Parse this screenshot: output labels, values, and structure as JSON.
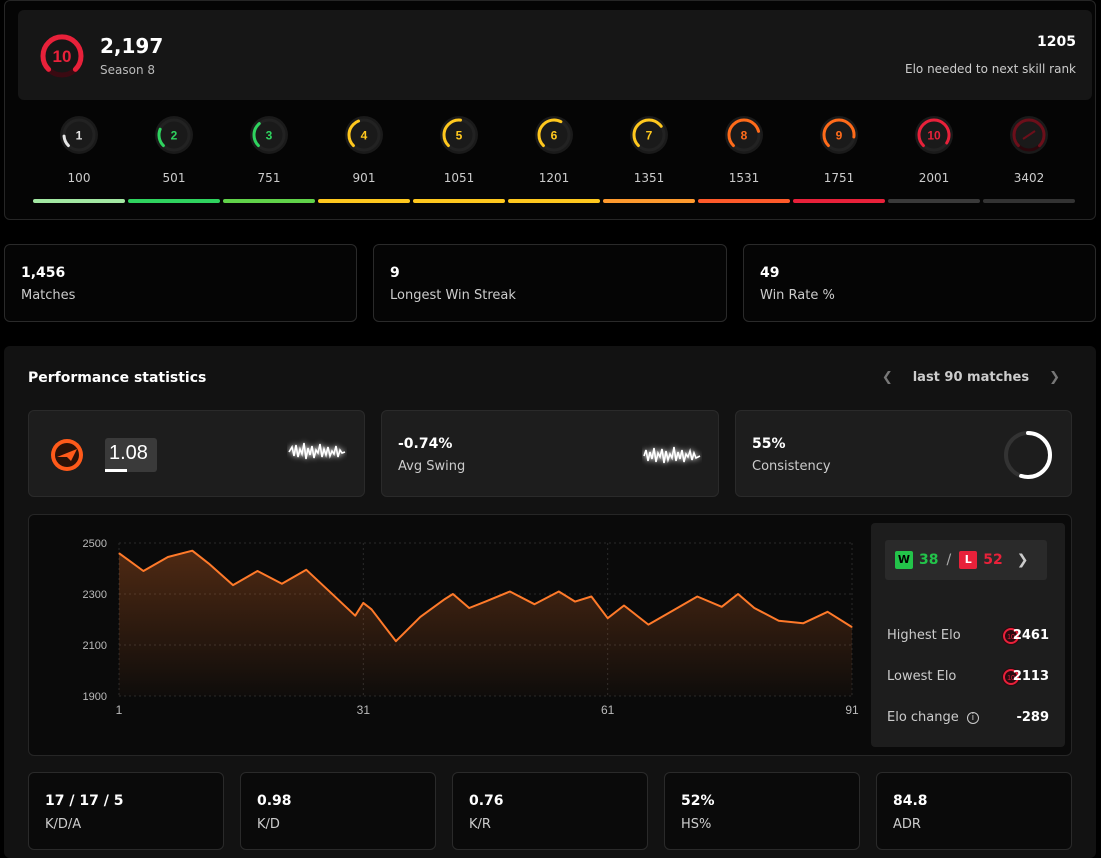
{
  "profile": {
    "level": "10",
    "elo": "2,197",
    "season": "Season 8",
    "next_value": "1205",
    "next_label": "Elo needed to next skill rank"
  },
  "levels": [
    {
      "level": "1",
      "threshold": "100",
      "color": "#e5e5e5",
      "bar": "#a3e8a3",
      "fill": 0.15
    },
    {
      "level": "2",
      "threshold": "501",
      "color": "#2fd35f",
      "bar": "#2fd35f",
      "fill": 0.25
    },
    {
      "level": "3",
      "threshold": "751",
      "color": "#2fd35f",
      "bar": "#61d34a",
      "fill": 0.35
    },
    {
      "level": "4",
      "threshold": "901",
      "color": "#ffc81e",
      "bar": "#ffc81e",
      "fill": 0.42
    },
    {
      "level": "5",
      "threshold": "1051",
      "color": "#ffc81e",
      "bar": "#ffc81e",
      "fill": 0.52
    },
    {
      "level": "6",
      "threshold": "1201",
      "color": "#ffc81e",
      "bar": "#ffc81e",
      "fill": 0.6
    },
    {
      "level": "7",
      "threshold": "1351",
      "color": "#ffc81e",
      "bar": "#ff9a2e",
      "fill": 0.7
    },
    {
      "level": "8",
      "threshold": "1531",
      "color": "#ff6b1a",
      "bar": "#ff5a2a",
      "fill": 0.78
    },
    {
      "level": "9",
      "threshold": "1751",
      "color": "#ff6b1a",
      "bar": "#e8213a",
      "fill": 0.86
    },
    {
      "level": "10",
      "threshold": "2001",
      "color": "#e8213a",
      "bar": "#3a3a3a",
      "fill": 0.95
    },
    {
      "level": "",
      "threshold": "3402",
      "color": "#6b0f1a",
      "bar": "#333333",
      "fill": 1
    }
  ],
  "summary": [
    {
      "value": "1,456",
      "label": "Matches"
    },
    {
      "value": "9",
      "label": "Longest Win Streak"
    },
    {
      "value": "49",
      "label": "Win Rate %"
    }
  ],
  "performance": {
    "title": "Performance statistics",
    "range_label": "last 90 matches",
    "rating": "1.08",
    "avg_swing_value": "-0.74%",
    "avg_swing_label": "Avg Swing",
    "consistency_value": "55%",
    "consistency_label": "Consistency",
    "consistency_fraction": 0.55
  },
  "record": {
    "wins": "38",
    "losses": "52",
    "w_badge": "W",
    "l_badge": "L",
    "sep": "/",
    "highest_label": "Highest Elo",
    "highest_value": "2461",
    "lowest_label": "Lowest Elo",
    "lowest_value": "2113",
    "change_label": "Elo change",
    "change_value": "-289",
    "badge_level": "10"
  },
  "bottom_stats": [
    {
      "value": "17 / 17 / 5",
      "label": "K/D/A"
    },
    {
      "value": "0.98",
      "label": "K/D"
    },
    {
      "value": "0.76",
      "label": "K/R"
    },
    {
      "value": "52%",
      "label": "HS%"
    },
    {
      "value": "84.8",
      "label": "ADR"
    }
  ],
  "colors": {
    "accent": "#ff6b1a",
    "line": "#ff7a2a",
    "win": "#23c34a",
    "loss": "#e8213a"
  },
  "chart_data": {
    "type": "area",
    "x_ticks": [
      "1",
      "31",
      "61",
      "91"
    ],
    "y_ticks": [
      "2500",
      "2300",
      "2100",
      "1900"
    ],
    "ylim": [
      1900,
      2500
    ],
    "xlim": [
      1,
      91
    ],
    "x": [
      1,
      4,
      7,
      10,
      12,
      15,
      18,
      21,
      24,
      27,
      30,
      31,
      32,
      35,
      38,
      41,
      42,
      44,
      46,
      49,
      52,
      55,
      57,
      59,
      61,
      63,
      66,
      69,
      72,
      75,
      77,
      79,
      82,
      85,
      88,
      91
    ],
    "y": [
      2460,
      2390,
      2445,
      2470,
      2420,
      2335,
      2390,
      2340,
      2395,
      2305,
      2215,
      2265,
      2240,
      2115,
      2210,
      2280,
      2300,
      2245,
      2270,
      2310,
      2260,
      2310,
      2270,
      2290,
      2205,
      2255,
      2180,
      2235,
      2290,
      2250,
      2300,
      2245,
      2195,
      2185,
      2230,
      2170
    ]
  }
}
